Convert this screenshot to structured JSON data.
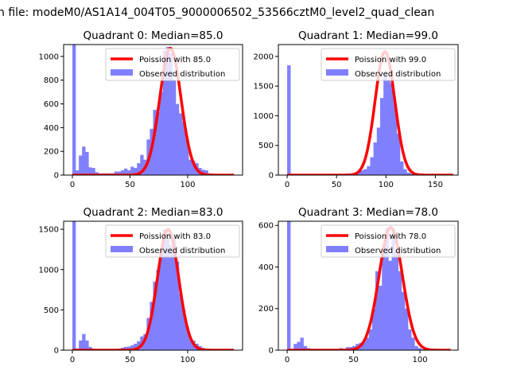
{
  "suptitle": "n file: modeM0/AS1A14_004T05_9000006502_53566cztM0_level2_quad_clean",
  "colors": {
    "hist": "#8080ff",
    "curve": "#ff0000"
  },
  "legend": {
    "curve_prefix": "Poission with ",
    "hist_label": "Observed distribution",
    "placement": "upper-right"
  },
  "chart_data": [
    {
      "type": "bar",
      "title": "Quadrant 0: Median=85.0",
      "median": 85.0,
      "curve_label": "Poission with 85.0",
      "curve_peak": 1070,
      "xlim": [
        -7.6,
        147.6
      ],
      "ylim": [
        0,
        1100
      ],
      "xticks": [
        0,
        50,
        100
      ],
      "yticks": [
        0,
        200,
        400,
        600,
        800,
        1000
      ],
      "bin_start": 0,
      "bin_width": 2.8,
      "values": [
        1400,
        40,
        165,
        240,
        195,
        65,
        60,
        25,
        15,
        15,
        15,
        15,
        15,
        30,
        30,
        40,
        55,
        40,
        70,
        60,
        100,
        170,
        130,
        300,
        390,
        550,
        530,
        700,
        1050,
        1080,
        1030,
        800,
        600,
        520,
        450,
        300,
        130,
        120,
        100,
        60,
        45,
        40,
        15,
        10,
        5,
        3,
        2,
        1,
        1,
        1
      ]
    },
    {
      "type": "bar",
      "title": "Quadrant 1: Median=99.0",
      "median": 99.0,
      "curve_label": "Poission with 99.0",
      "curve_peak": 2080,
      "xlim": [
        -8.9,
        173
      ],
      "ylim": [
        0,
        2200
      ],
      "xticks": [
        0,
        50,
        100,
        150
      ],
      "yticks": [
        0,
        500,
        1000,
        1500,
        2000
      ],
      "bin_start": 0,
      "bin_width": 3.36,
      "values": [
        1850,
        10,
        20,
        15,
        10,
        10,
        10,
        10,
        10,
        10,
        10,
        10,
        10,
        15,
        15,
        15,
        20,
        20,
        25,
        30,
        40,
        60,
        80,
        100,
        150,
        300,
        550,
        800,
        1300,
        1700,
        1600,
        1550,
        1200,
        700,
        230,
        100,
        40,
        25,
        15,
        10,
        5,
        5,
        5,
        3,
        2,
        2,
        1,
        1,
        1,
        1
      ]
    },
    {
      "type": "bar",
      "title": "Quadrant 2: Median=83.0",
      "median": 83.0,
      "curve_label": "Poission with 83.0",
      "curve_peak": 1500,
      "xlim": [
        -7.6,
        147.6
      ],
      "ylim": [
        0,
        1600
      ],
      "xticks": [
        0,
        50,
        100
      ],
      "yticks": [
        0,
        500,
        1000,
        1500
      ],
      "bin_start": 0,
      "bin_width": 2.8,
      "values": [
        1700,
        20,
        120,
        200,
        120,
        40,
        20,
        15,
        10,
        10,
        10,
        10,
        15,
        15,
        20,
        30,
        40,
        45,
        60,
        80,
        110,
        170,
        200,
        400,
        600,
        850,
        1000,
        1250,
        1500,
        1450,
        1300,
        1400,
        1100,
        700,
        500,
        300,
        150,
        120,
        80,
        50,
        30,
        20,
        10,
        5,
        3,
        2,
        1,
        1,
        1,
        1
      ]
    },
    {
      "type": "bar",
      "title": "Quadrant 3: Median=78.0",
      "median": 78.0,
      "curve_label": "Poission with 78.0",
      "curve_peak": 590,
      "xlim": [
        -6.6,
        128.7
      ],
      "ylim": [
        0,
        620
      ],
      "xticks": [
        0,
        50,
        100
      ],
      "yticks": [
        0,
        200,
        400,
        600
      ],
      "bin_start": 0,
      "bin_width": 2.46,
      "values": [
        640,
        0,
        30,
        40,
        60,
        20,
        10,
        0,
        5,
        0,
        5,
        0,
        0,
        0,
        0,
        0,
        10,
        5,
        15,
        15,
        20,
        30,
        35,
        40,
        60,
        100,
        200,
        380,
        310,
        500,
        590,
        430,
        580,
        480,
        380,
        280,
        200,
        100,
        60,
        20,
        10,
        5,
        3,
        2,
        1,
        1,
        0,
        0,
        0,
        0
      ]
    }
  ]
}
